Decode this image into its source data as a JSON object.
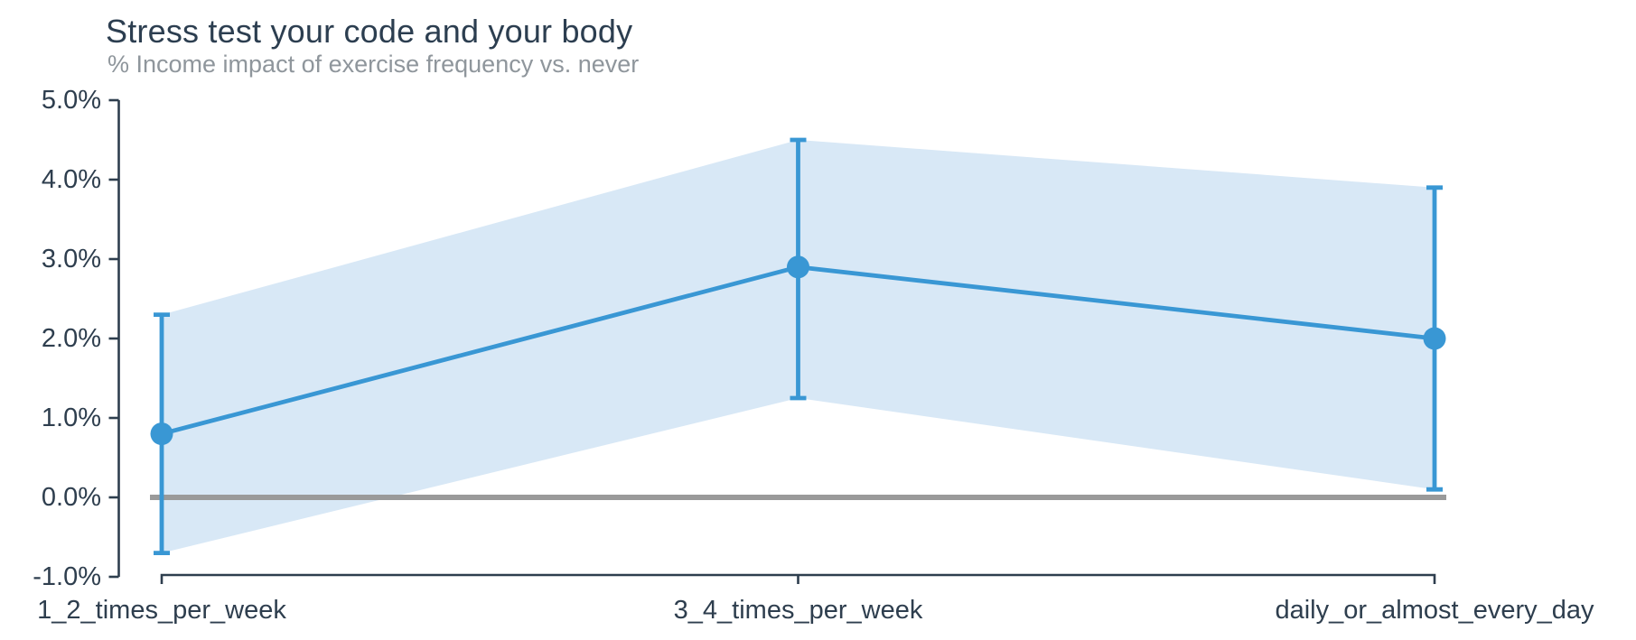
{
  "chart": {
    "colors": {
      "line": "#3997d4",
      "marker": "#3997d4",
      "error_bar": "#3997d4",
      "band": "#d8e8f6",
      "zero_line": "#9a9a9a",
      "axis": "#2e3e4e",
      "tick_label": "#2e3e4e",
      "title": "#2c3e50",
      "subtitle": "#8f969c",
      "background": "#ffffff"
    }
  },
  "chart_data": {
    "type": "line",
    "title": "Stress test your code and your body",
    "subtitle": "% Income impact of exercise frequency vs. never",
    "categories": [
      "1_2_times_per_week",
      "3_4_times_per_week",
      "daily_or_almost_every_day"
    ],
    "series": [
      {
        "name": "% income impact vs. never",
        "values": [
          0.8,
          2.9,
          2.0
        ],
        "ci_lower": [
          -0.7,
          1.25,
          0.1
        ],
        "ci_upper": [
          2.3,
          4.5,
          3.9
        ]
      }
    ],
    "ylim": [
      -1.0,
      5.0
    ],
    "yticks": [
      5,
      4,
      3,
      2,
      1,
      0,
      -1
    ],
    "ytick_labels": [
      "5.0%",
      "4.0%",
      "3.0%",
      "2.0%",
      "1.0%",
      "0.0%",
      "-1.0%"
    ],
    "baseline_value": 0,
    "grid": false,
    "legend": false,
    "band_meaning": "confidence-interval band between ci_lower and ci_upper",
    "marker": "circle"
  }
}
